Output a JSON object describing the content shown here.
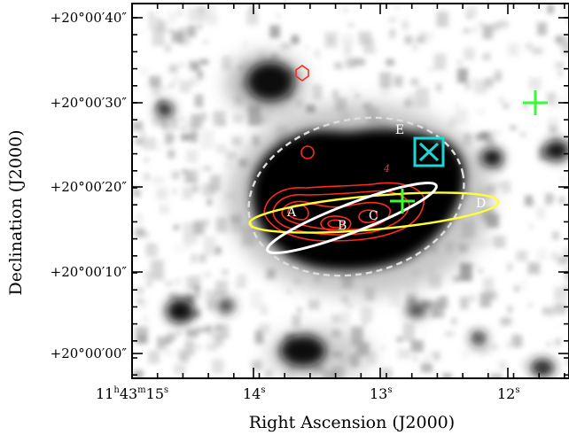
{
  "figure": {
    "x_axis_title": "Right Ascension (J2000)",
    "y_axis_title": "Declination (J2000)",
    "x_ticks": [
      {
        "h": "11",
        "hs": "h",
        "m": "43",
        "ms": "m",
        "s": "15",
        "ss": "s"
      },
      {
        "s": "14",
        "ss": "s"
      },
      {
        "s": "13",
        "ss": "s"
      },
      {
        "s": "12",
        "ss": "s"
      }
    ],
    "y_ticks": [
      "+20°00′40″",
      "+20°00′30″",
      "+20°00′20″",
      "+20°00′10″",
      "+20°00′00″"
    ],
    "labels": {
      "A": "A",
      "B": "B",
      "C": "C",
      "D": "D",
      "E": "E",
      "contour_level": "4"
    },
    "colors": {
      "contours": "#ff2a1a",
      "dashed_ellipse": "#dddddd",
      "white_ellipse": "#ffffff",
      "yellow_ellipse": "#ffff33",
      "cross": "#33ff33",
      "cyan_box": "#18d8d8",
      "circle": "#ff2a1a",
      "hexagon": "#ff2a1a"
    },
    "markers": {
      "hexagon": "hexagon",
      "circle": "circle",
      "cyan_box": "box-with-x",
      "crosses": [
        "plus",
        "plus"
      ]
    }
  }
}
